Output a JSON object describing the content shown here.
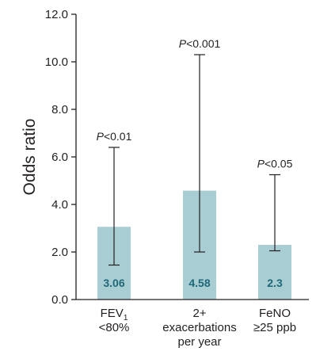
{
  "colors": {
    "bar": "#a8cdd3",
    "value_text": "#1f6878",
    "axis": "#231f20",
    "error_bar": "#231f20"
  },
  "chart_data": {
    "type": "bar",
    "ylabel": "Odds ratio",
    "ylim": [
      0,
      12
    ],
    "yticks": [
      "0.0",
      "2.0",
      "4.0",
      "6.0",
      "8.0",
      "10.0",
      "12.0"
    ],
    "categories": [
      [
        "FEV",
        "<80%"
      ],
      [
        "2+",
        "exacerbations",
        "per year"
      ],
      [
        "FeNO",
        "≥25 ppb"
      ]
    ],
    "fev_subscript": "1",
    "values": [
      3.06,
      4.58,
      2.3
    ],
    "value_labels": [
      "3.06",
      "4.58",
      "2.3"
    ],
    "ci_lower": [
      1.45,
      2.0,
      2.05
    ],
    "ci_upper": [
      6.4,
      10.3,
      5.25
    ],
    "p_prefix": [
      "P",
      "P",
      "P"
    ],
    "p_suffix": [
      "<0.01",
      "<0.001",
      "<0.05"
    ]
  }
}
